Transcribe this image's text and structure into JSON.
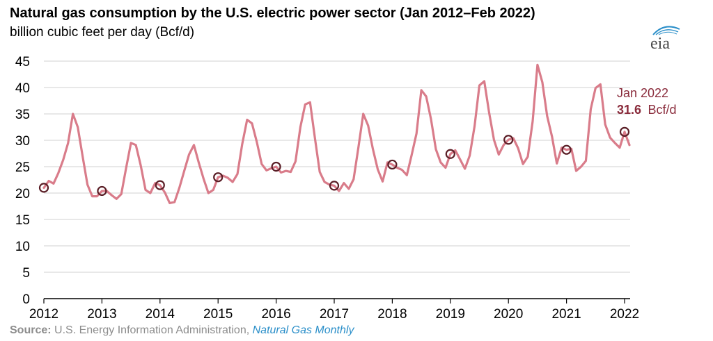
{
  "chart_data": {
    "type": "line",
    "title": "Natural gas consumption by the U.S. electric power sector (Jan 2012–Feb 2022)",
    "ylabel": "billion cubic feet per day (Bcf/d)",
    "xlabel": "",
    "ylim": [
      0,
      45
    ],
    "yticks": [
      0,
      5,
      10,
      15,
      20,
      25,
      30,
      35,
      40,
      45
    ],
    "xlim": [
      "2012-01",
      "2022-02"
    ],
    "xticks": [
      "2012",
      "2013",
      "2014",
      "2015",
      "2016",
      "2017",
      "2018",
      "2019",
      "2020",
      "2021",
      "2022"
    ],
    "grid": true,
    "series": [
      {
        "color": "#d97c8a",
        "x_start": "2012-01",
        "frequency": "monthly",
        "values": [
          21.0,
          22.3,
          21.8,
          23.8,
          26.3,
          29.5,
          35.0,
          32.5,
          27.0,
          21.6,
          19.4,
          19.4,
          20.4,
          20.4,
          19.6,
          18.9,
          19.8,
          24.8,
          29.5,
          29.1,
          25.3,
          20.6,
          20.0,
          21.9,
          21.5,
          20.1,
          18.1,
          18.3,
          21.0,
          24.2,
          27.3,
          29.1,
          25.8,
          22.7,
          20.0,
          20.6,
          23.0,
          23.3,
          22.9,
          22.1,
          23.6,
          29.3,
          33.9,
          33.2,
          29.7,
          25.5,
          24.3,
          24.7,
          25.0,
          23.9,
          24.2,
          24.0,
          26.0,
          32.5,
          36.8,
          37.2,
          30.5,
          24.0,
          22.1,
          21.6,
          21.4,
          20.4,
          21.9,
          20.8,
          22.6,
          28.7,
          35.0,
          32.8,
          28.3,
          24.5,
          22.2,
          25.8,
          25.4,
          24.8,
          24.4,
          23.4,
          27.2,
          31.3,
          39.5,
          38.3,
          34.0,
          28.3,
          25.8,
          24.8,
          27.4,
          28.1,
          26.4,
          24.6,
          27.1,
          32.7,
          40.4,
          41.2,
          35.3,
          30.1,
          27.3,
          29.1,
          30.1,
          30.4,
          28.5,
          25.5,
          26.9,
          33.6,
          44.3,
          41.0,
          34.6,
          30.7,
          25.6,
          28.6,
          28.2,
          28.4,
          24.2,
          25.0,
          26.1,
          35.9,
          39.9,
          40.6,
          33.0,
          30.5,
          29.5,
          28.6,
          31.6,
          29.1
        ]
      }
    ],
    "markers": [
      {
        "x": "2012-01",
        "y": 21.0
      },
      {
        "x": "2013-01",
        "y": 20.4
      },
      {
        "x": "2014-01",
        "y": 21.5
      },
      {
        "x": "2015-01",
        "y": 23.0
      },
      {
        "x": "2016-01",
        "y": 25.0
      },
      {
        "x": "2017-01",
        "y": 21.4
      },
      {
        "x": "2018-01",
        "y": 25.4
      },
      {
        "x": "2019-01",
        "y": 27.4
      },
      {
        "x": "2020-01",
        "y": 30.1
      },
      {
        "x": "2021-01",
        "y": 28.2
      },
      {
        "x": "2022-01",
        "y": 31.6
      }
    ],
    "marker_color": "#5a1e26",
    "annotation": {
      "label": "Jan 2022",
      "value": "31.6",
      "unit": "Bcf/d",
      "color": "#8a2c3c"
    }
  },
  "logo": {
    "text": "eia",
    "accent": "#2b8fc9"
  },
  "source": {
    "label": "Source:",
    "text": "U.S. Energy Information Administration,",
    "link": "Natural Gas Monthly"
  }
}
